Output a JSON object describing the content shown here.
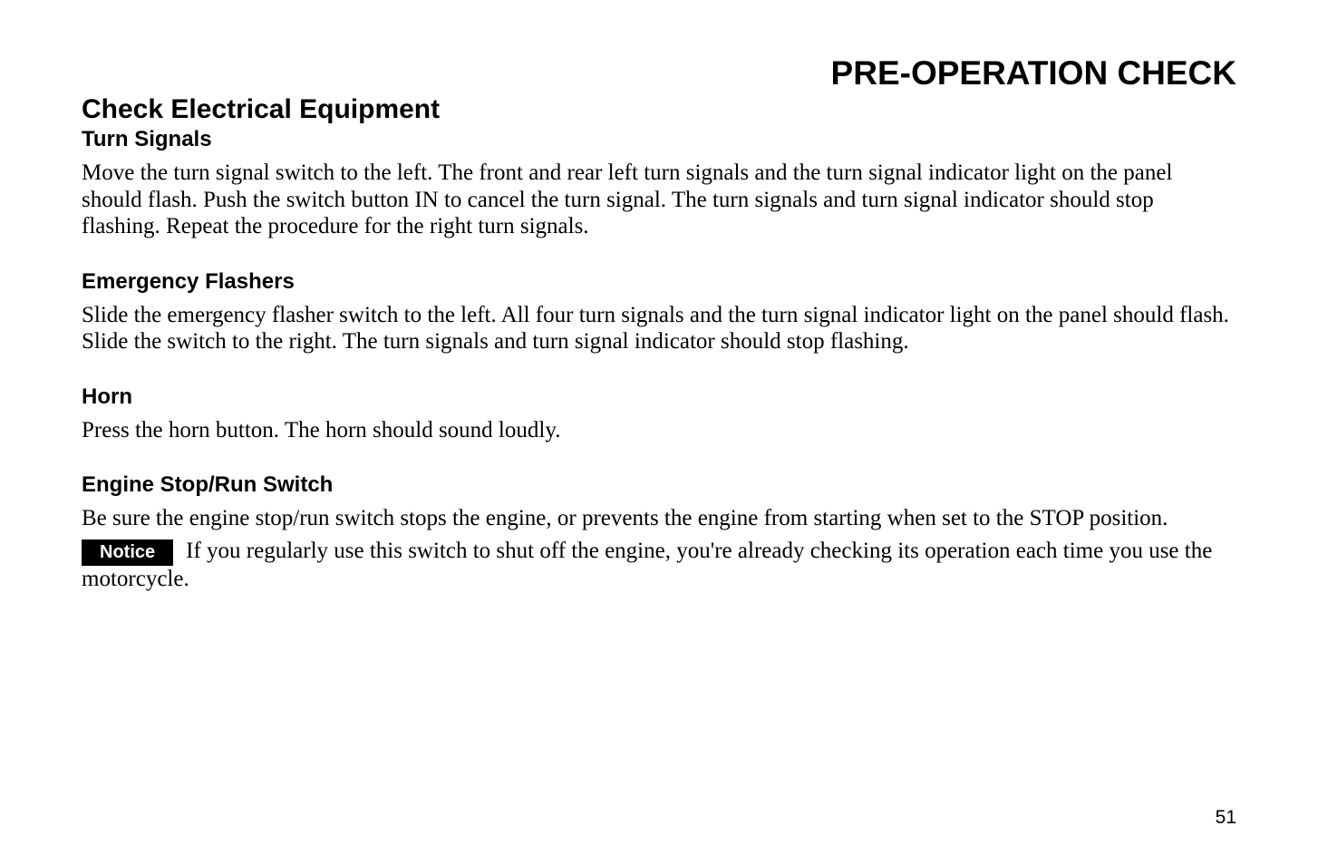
{
  "page": {
    "title": "PRE-OPERATION CHECK",
    "number": "51"
  },
  "section": {
    "heading": "Check Electrical Equipment"
  },
  "subsections": {
    "turn_signals": {
      "heading": "Turn Signals",
      "body": "Move the turn signal switch to the left. The front and rear left turn signals and the turn signal indicator light on the panel should flash. Push the switch button IN to cancel the turn signal.  The turn signals and turn signal indicator should stop flashing. Repeat the procedure for the right turn signals."
    },
    "emergency_flashers": {
      "heading": "Emergency Flashers",
      "body": "Slide the emergency flasher switch to the left. All four turn signals and the turn signal indicator light on the panel should flash. Slide the switch to the right. The turn signals and turn signal indicator should stop flashing."
    },
    "horn": {
      "heading": "Horn",
      "body": "Press the horn button. The horn should sound loudly."
    },
    "engine_stop": {
      "heading": "Engine Stop/Run Switch",
      "body": "Be sure the engine stop/run switch stops the engine, or prevents the engine from starting when set to the STOP position.",
      "notice_label": "Notice",
      "notice_body": "If you regularly use this switch to shut off the engine, you're already checking its operation each time you use the motorcycle."
    }
  }
}
